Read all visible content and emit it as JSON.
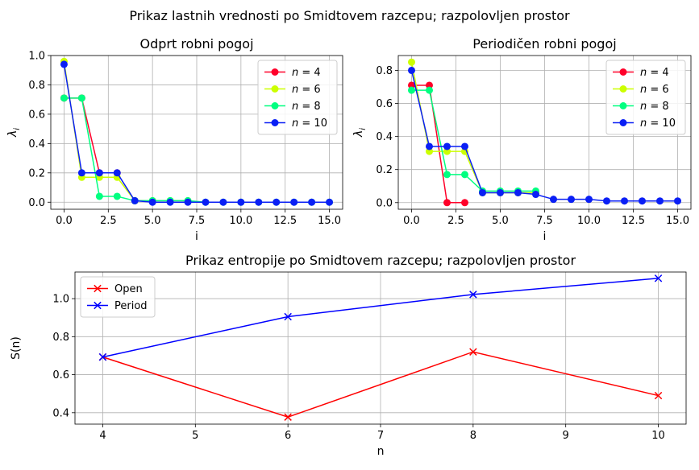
{
  "suptitle": "Prikaz lastnih vrednosti po Smidtovem razcepu; razpolovljen prostor",
  "chart_data": [
    {
      "type": "line",
      "title": "Odprt robni pogoj",
      "xlabel": "i",
      "ylabel": "λ_i",
      "ylabel_main": "λ",
      "ylabel_sub": "i",
      "xlim": [
        -0.75,
        15.75
      ],
      "ylim": [
        -0.048,
        1.0
      ],
      "xticks": [
        0,
        2.5,
        5,
        7.5,
        10,
        12.5,
        15
      ],
      "xtick_labels": [
        "0.0",
        "2.5",
        "5.0",
        "7.5",
        "10.0",
        "12.5",
        "15.0"
      ],
      "yticks": [
        0,
        0.2,
        0.4,
        0.6,
        0.8,
        1.0
      ],
      "ytick_labels": [
        "0.0",
        "0.2",
        "0.4",
        "0.6",
        "0.8",
        "1.0"
      ],
      "grid": true,
      "legend_position": "top-right",
      "marker": "circle",
      "series": [
        {
          "name": "n = 4",
          "label_var": "n",
          "label_val": "4",
          "color": "#ff0029",
          "x": [
            0,
            1,
            2,
            3
          ],
          "y": [
            0.71,
            0.71,
            0.2,
            0.2
          ]
        },
        {
          "name": "n = 6",
          "label_var": "n",
          "label_val": "6",
          "color": "#ccff00",
          "x": [
            0,
            1,
            2,
            3,
            4,
            5,
            6,
            7
          ],
          "y": [
            0.96,
            0.17,
            0.17,
            0.17,
            0.01,
            0.01,
            0.01,
            0.01
          ]
        },
        {
          "name": "n = 8",
          "label_var": "n",
          "label_val": "8",
          "color": "#00ff80",
          "x": [
            0,
            1,
            2,
            3,
            4,
            5,
            6,
            7,
            8,
            9,
            10,
            11,
            12,
            13,
            14,
            15
          ],
          "y": [
            0.71,
            0.71,
            0.04,
            0.04,
            0.01,
            0.01,
            0.01,
            0.01,
            0.0,
            0.0,
            0.0,
            0.0,
            0.0,
            0.0,
            0.0,
            0.0
          ]
        },
        {
          "name": "n = 10",
          "label_var": "n",
          "label_val": "10",
          "color": "#0a1ff5",
          "x": [
            0,
            1,
            2,
            3,
            4,
            5,
            6,
            7,
            8,
            9,
            10,
            11,
            12,
            13,
            14,
            15
          ],
          "y": [
            0.94,
            0.2,
            0.2,
            0.2,
            0.01,
            0.0,
            0.0,
            0.0,
            0.0,
            0.0,
            0.0,
            0.0,
            0.0,
            0.0,
            0.0,
            0.0
          ]
        }
      ]
    },
    {
      "type": "line",
      "title": "Periodičen robni pogoj",
      "xlabel": "i",
      "ylabel": "λ_i",
      "ylabel_main": "λ",
      "ylabel_sub": "i",
      "xlim": [
        -0.75,
        15.75
      ],
      "ylim": [
        -0.04,
        0.89
      ],
      "xticks": [
        0,
        2.5,
        5,
        7.5,
        10,
        12.5,
        15
      ],
      "xtick_labels": [
        "0.0",
        "2.5",
        "5.0",
        "7.5",
        "10.0",
        "12.5",
        "15.0"
      ],
      "yticks": [
        0,
        0.2,
        0.4,
        0.6,
        0.8
      ],
      "ytick_labels": [
        "0.0",
        "0.2",
        "0.4",
        "0.6",
        "0.8"
      ],
      "grid": true,
      "legend_position": "top-right",
      "marker": "circle",
      "series": [
        {
          "name": "n = 4",
          "label_var": "n",
          "label_val": "4",
          "color": "#ff0029",
          "x": [
            0,
            1,
            2,
            3
          ],
          "y": [
            0.71,
            0.71,
            0.0,
            0.0
          ]
        },
        {
          "name": "n = 6",
          "label_var": "n",
          "label_val": "6",
          "color": "#ccff00",
          "x": [
            0,
            1,
            2,
            3,
            4,
            5,
            6,
            7
          ],
          "y": [
            0.85,
            0.31,
            0.31,
            0.31,
            0.06,
            0.06,
            0.06,
            0.06
          ]
        },
        {
          "name": "n = 8",
          "label_var": "n",
          "label_val": "8",
          "color": "#00ff80",
          "x": [
            0,
            1,
            2,
            3,
            4,
            5,
            6,
            7
          ],
          "y": [
            0.68,
            0.68,
            0.17,
            0.17,
            0.07,
            0.07,
            0.07,
            0.07
          ]
        },
        {
          "name": "n = 10",
          "label_var": "n",
          "label_val": "10",
          "color": "#0a1ff5",
          "x": [
            0,
            1,
            2,
            3,
            4,
            5,
            6,
            7,
            8,
            9,
            10,
            11,
            12,
            13,
            14,
            15
          ],
          "y": [
            0.8,
            0.34,
            0.34,
            0.34,
            0.06,
            0.06,
            0.06,
            0.05,
            0.02,
            0.02,
            0.02,
            0.01,
            0.01,
            0.01,
            0.01,
            0.01
          ]
        }
      ]
    },
    {
      "type": "line",
      "title": "Prikaz entropije po Smidtovem razcepu; razpolovljen prostor",
      "xlabel": "n",
      "ylabel": "S(n)",
      "xlim": [
        3.7,
        10.3
      ],
      "ylim": [
        0.34,
        1.14
      ],
      "xticks": [
        4,
        5,
        6,
        7,
        8,
        9,
        10
      ],
      "xtick_labels": [
        "4",
        "5",
        "6",
        "7",
        "8",
        "9",
        "10"
      ],
      "yticks": [
        0.4,
        0.6,
        0.8,
        1.0
      ],
      "ytick_labels": [
        "0.4",
        "0.6",
        "0.8",
        "1.0"
      ],
      "grid": true,
      "legend_position": "top-left",
      "marker": "x",
      "series": [
        {
          "name": "Open",
          "color": "#ff0000",
          "x": [
            4,
            6,
            8,
            10
          ],
          "y": [
            0.693,
            0.377,
            0.72,
            0.49
          ]
        },
        {
          "name": "Period",
          "color": "#0000ff",
          "x": [
            4,
            6,
            8,
            10
          ],
          "y": [
            0.693,
            0.905,
            1.022,
            1.107
          ]
        }
      ]
    }
  ]
}
